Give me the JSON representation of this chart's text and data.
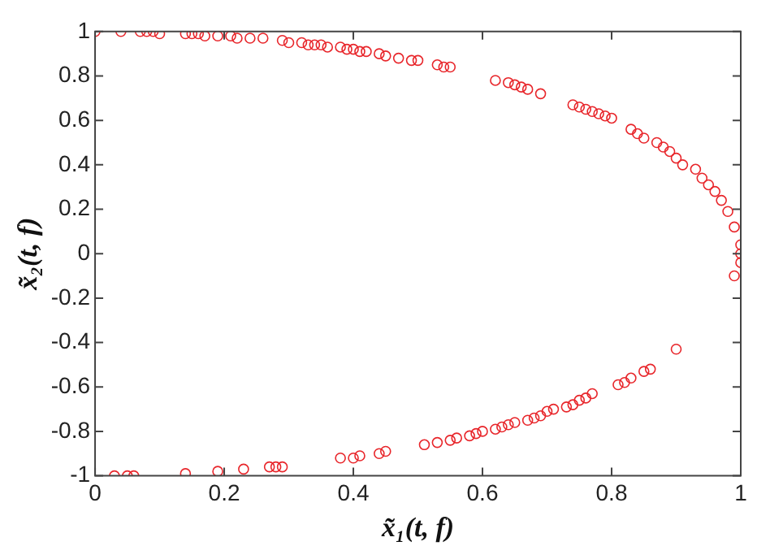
{
  "chart_data": {
    "type": "scatter",
    "xlabel": "x̃₁(t, f)",
    "ylabel": "x̃₂(t, f)",
    "marker": "circle",
    "grid": false,
    "legend": false,
    "xlim": [
      0,
      1
    ],
    "xticks": [
      0,
      0.2,
      0.4,
      0.6,
      0.8,
      1
    ],
    "ylim": [
      -1,
      1
    ],
    "yticks": [
      -1,
      -0.8,
      -0.6,
      -0.4,
      -0.2,
      0,
      0.2,
      0.4,
      0.6,
      0.8,
      1
    ],
    "series": [
      {
        "color": "#e8262b",
        "x": [
          0,
          0.04,
          0.07,
          0.08,
          0.09,
          0.1,
          0.14,
          0.15,
          0.16,
          0.17,
          0.19,
          0.21,
          0.22,
          0.24,
          0.26,
          0.29,
          0.3,
          0.32,
          0.33,
          0.34,
          0.35,
          0.36,
          0.38,
          0.39,
          0.4,
          0.41,
          0.42,
          0.44,
          0.45,
          0.47,
          0.49,
          0.5,
          0.53,
          0.54,
          0.55,
          0.62,
          0.64,
          0.65,
          0.66,
          0.67,
          0.69,
          0.74,
          0.75,
          0.76,
          0.77,
          0.78,
          0.79,
          0.8,
          0.83,
          0.84,
          0.85,
          0.87,
          0.88,
          0.89,
          0.9,
          0.91,
          0.93,
          0.94,
          0.95,
          0.96,
          0.97,
          0.98,
          0.99,
          1,
          1,
          1,
          0.99,
          0.03,
          0.05,
          0.06,
          0.14,
          0.19,
          0.23,
          0.27,
          0.28,
          0.29,
          0.38,
          0.4,
          0.41,
          0.44,
          0.45,
          0.51,
          0.53,
          0.55,
          0.56,
          0.58,
          0.59,
          0.6,
          0.62,
          0.63,
          0.64,
          0.65,
          0.67,
          0.68,
          0.69,
          0.7,
          0.71,
          0.73,
          0.74,
          0.75,
          0.76,
          0.77,
          0.81,
          0.82,
          0.83,
          0.85,
          0.86,
          0.9
        ],
        "values": [
          1,
          1,
          1,
          1,
          1,
          0.99,
          0.99,
          0.99,
          0.99,
          0.98,
          0.98,
          0.98,
          0.97,
          0.97,
          0.97,
          0.96,
          0.95,
          0.95,
          0.94,
          0.94,
          0.94,
          0.93,
          0.93,
          0.92,
          0.92,
          0.91,
          0.91,
          0.9,
          0.89,
          0.88,
          0.87,
          0.87,
          0.85,
          0.84,
          0.84,
          0.78,
          0.77,
          0.76,
          0.75,
          0.74,
          0.72,
          0.67,
          0.66,
          0.65,
          0.64,
          0.63,
          0.62,
          0.61,
          0.56,
          0.54,
          0.52,
          0.5,
          0.48,
          0.46,
          0.43,
          0.4,
          0.38,
          0.34,
          0.31,
          0.28,
          0.24,
          0.19,
          0.12,
          0.04,
          0,
          -0.04,
          -0.1,
          -1,
          -1,
          -1,
          -0.99,
          -0.98,
          -0.97,
          -0.96,
          -0.96,
          -0.96,
          -0.92,
          -0.92,
          -0.91,
          -0.9,
          -0.89,
          -0.86,
          -0.85,
          -0.84,
          -0.83,
          -0.82,
          -0.81,
          -0.8,
          -0.79,
          -0.78,
          -0.77,
          -0.76,
          -0.75,
          -0.74,
          -0.73,
          -0.71,
          -0.7,
          -0.69,
          -0.68,
          -0.66,
          -0.65,
          -0.63,
          -0.59,
          -0.58,
          -0.56,
          -0.53,
          -0.52,
          -0.43
        ]
      }
    ]
  }
}
